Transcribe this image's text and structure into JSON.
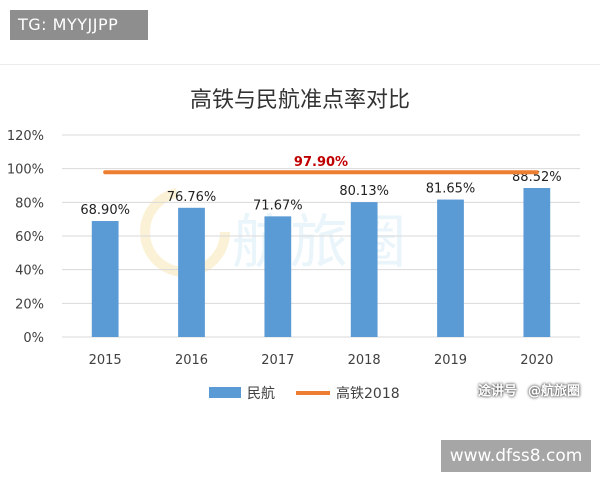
{
  "header": {
    "tag_text": "TG: MYYJJPP"
  },
  "footer": {
    "site_text": "www.dfss8.com"
  },
  "watermark": {
    "center_text": "航旅圈",
    "bottom_left_text": "途讲号",
    "bottom_right_text": "@航旅圈"
  },
  "colors": {
    "bar": "#5b9bd5",
    "line": "#ed7d31",
    "line_label": "#c00000",
    "grid": "#d9d9d9",
    "axis_text": "#404040"
  },
  "chart_data": {
    "type": "bar",
    "title": "高铁与民航准点率对比",
    "xlabel": "",
    "ylabel": "",
    "categories": [
      "2015",
      "2016",
      "2017",
      "2018",
      "2019",
      "2020"
    ],
    "series": [
      {
        "name": "民航",
        "type": "bar",
        "values": [
          68.9,
          76.76,
          71.67,
          80.13,
          81.65,
          88.52
        ],
        "labels": [
          "68.90%",
          "76.76%",
          "71.67%",
          "80.13%",
          "81.65%",
          "88.52%"
        ]
      },
      {
        "name": "高铁2018",
        "type": "line",
        "value": 97.9,
        "label": "97.90%"
      }
    ],
    "ylim": [
      0,
      120
    ],
    "yticks": [
      "0%",
      "20%",
      "40%",
      "60%",
      "80%",
      "100%",
      "120%"
    ],
    "grid": true,
    "legend": "bottom"
  }
}
